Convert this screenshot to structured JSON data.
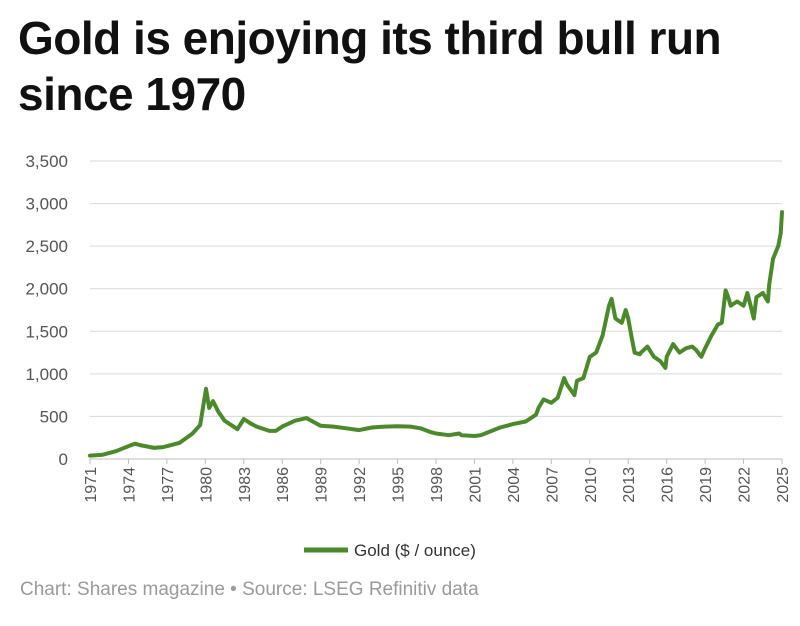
{
  "title": "Gold is enjoying its third bull run since 1970",
  "source": "Chart: Shares magazine • Source: LSEG Refinitiv data",
  "colors": {
    "series": "#4a8a2a",
    "grid": "#d9d9d9",
    "text": "#555555"
  },
  "chart_data": {
    "type": "line",
    "xlim": [
      1971,
      2025
    ],
    "ylim": [
      0,
      3500
    ],
    "yticks": [
      "0",
      "500",
      "1,000",
      "1,500",
      "2,000",
      "2,500",
      "3,000",
      "3,500"
    ],
    "ytick_values": [
      0,
      500,
      1000,
      1500,
      2000,
      2500,
      3000,
      3500
    ],
    "xticks": [
      "1971",
      "1974",
      "1977",
      "1980",
      "1983",
      "1986",
      "1989",
      "1992",
      "1995",
      "1998",
      "2001",
      "2004",
      "2007",
      "2010",
      "2013",
      "2016",
      "2019",
      "2022",
      "2025"
    ],
    "xtick_values": [
      1971,
      1974,
      1977,
      1980,
      1983,
      1986,
      1989,
      1992,
      1995,
      1998,
      2001,
      2004,
      2007,
      2010,
      2013,
      2016,
      2019,
      2022,
      2025
    ],
    "grid": "horizontal",
    "legend_position": "bottom",
    "series": [
      {
        "name": "Gold  ($ / ounce)",
        "color": "#4a8a2a",
        "x": [
          1971,
          1972,
          1973,
          1974,
          1974.5,
          1975,
          1976,
          1976.7,
          1977,
          1978,
          1979,
          1979.6,
          1980.05,
          1980.3,
          1980.6,
          1981,
          1981.5,
          1982,
          1982.5,
          1983,
          1983.5,
          1984,
          1985,
          1985.5,
          1986,
          1987,
          1987.9,
          1988.5,
          1989,
          1990,
          1991,
          1992,
          1993,
          1994,
          1995,
          1996,
          1996.8,
          1997.5,
          1998,
          1999,
          1999.8,
          2000,
          2001,
          2001.5,
          2002,
          2003,
          2004,
          2005,
          2005.8,
          2006,
          2006.4,
          2007,
          2007.5,
          2008,
          2008.2,
          2008.8,
          2009,
          2009.5,
          2010,
          2010.5,
          2011,
          2011.5,
          2011.7,
          2012,
          2012.5,
          2012.8,
          2013,
          2013.3,
          2013.5,
          2013.9,
          2014,
          2014.5,
          2015,
          2015.5,
          2015.9,
          2016,
          2016.5,
          2017,
          2017.5,
          2018,
          2018.3,
          2018.7,
          2019,
          2019.5,
          2020,
          2020.3,
          2020.6,
          2020.8,
          2021,
          2021.5,
          2022,
          2022.3,
          2022.8,
          2023,
          2023.5,
          2023.9,
          2024,
          2024.3,
          2024.7,
          2024.9,
          2025
        ],
        "values": [
          40,
          50,
          90,
          150,
          180,
          160,
          130,
          140,
          150,
          190,
          300,
          400,
          825,
          600,
          680,
          560,
          450,
          400,
          350,
          470,
          420,
          380,
          330,
          330,
          380,
          450,
          480,
          430,
          390,
          380,
          360,
          340,
          370,
          380,
          385,
          380,
          360,
          320,
          300,
          280,
          300,
          280,
          270,
          280,
          310,
          370,
          410,
          440,
          520,
          600,
          700,
          660,
          720,
          950,
          880,
          750,
          920,
          950,
          1200,
          1250,
          1450,
          1800,
          1880,
          1650,
          1600,
          1750,
          1650,
          1400,
          1250,
          1230,
          1250,
          1320,
          1200,
          1150,
          1070,
          1200,
          1350,
          1250,
          1300,
          1320,
          1280,
          1200,
          1300,
          1450,
          1580,
          1600,
          1980,
          1900,
          1800,
          1850,
          1800,
          1950,
          1650,
          1900,
          1950,
          1850,
          2050,
          2350,
          2500,
          2650,
          2900
        ]
      }
    ]
  }
}
